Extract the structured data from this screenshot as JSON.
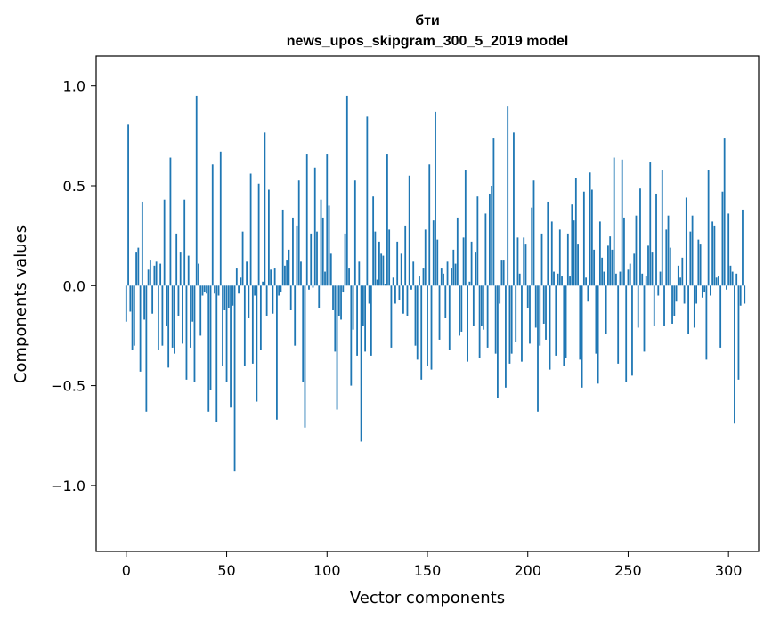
{
  "chart_data": {
    "type": "bar",
    "title": "бти",
    "subtitle": "news_upos_skipgram_300_5_2019 model",
    "xlabel": "Vector components",
    "ylabel": "Components values",
    "xlim": [
      -15,
      315
    ],
    "ylim": [
      -1.33,
      1.15
    ],
    "xticks": [
      0,
      50,
      100,
      150,
      200,
      250,
      300
    ],
    "xtick_labels": [
      "0",
      "50",
      "100",
      "150",
      "200",
      "250",
      "300"
    ],
    "yticks": [
      -1.0,
      -0.5,
      0.0,
      0.5,
      1.0
    ],
    "ytick_labels": [
      "−1.0",
      "−0.5",
      "0.0",
      "0.5",
      "1.0"
    ],
    "grid": false,
    "legend": "none",
    "bar_color": "#1f77b4",
    "values": [
      -0.18,
      0.81,
      -0.13,
      -0.32,
      -0.3,
      0.17,
      0.19,
      -0.43,
      0.42,
      -0.17,
      -0.63,
      0.08,
      0.13,
      -0.14,
      0.1,
      0.12,
      -0.32,
      0.11,
      -0.3,
      0.43,
      -0.2,
      -0.41,
      0.64,
      -0.31,
      -0.34,
      0.26,
      -0.15,
      0.17,
      -0.29,
      0.43,
      -0.47,
      0.15,
      -0.31,
      -0.18,
      -0.48,
      0.95,
      0.11,
      -0.25,
      -0.05,
      -0.03,
      -0.04,
      -0.63,
      -0.52,
      0.61,
      -0.04,
      -0.68,
      -0.05,
      0.67,
      -0.4,
      -0.12,
      -0.48,
      -0.11,
      -0.61,
      -0.1,
      -0.93,
      0.09,
      -0.04,
      0.04,
      0.27,
      -0.4,
      0.12,
      -0.16,
      0.56,
      -0.39,
      -0.05,
      -0.58,
      0.51,
      -0.32,
      0.02,
      0.77,
      -0.15,
      0.48,
      0.08,
      -0.14,
      0.09,
      -0.67,
      -0.05,
      -0.03,
      0.38,
      0.1,
      0.13,
      0.18,
      -0.12,
      0.34,
      -0.3,
      0.3,
      0.53,
      0.12,
      -0.48,
      -0.71,
      0.66,
      -0.02,
      0.26,
      -0.01,
      0.59,
      0.27,
      -0.11,
      0.43,
      0.34,
      0.07,
      0.66,
      0.4,
      0.16,
      -0.12,
      -0.33,
      -0.62,
      -0.15,
      -0.17,
      -0.03,
      0.26,
      0.95,
      0.09,
      -0.5,
      -0.22,
      0.53,
      -0.35,
      0.12,
      -0.78,
      -0.2,
      -0.33,
      0.85,
      -0.09,
      -0.35,
      0.45,
      0.27,
      0.03,
      0.22,
      0.16,
      0.15,
      0.01,
      0.66,
      0.28,
      -0.31,
      0.04,
      -0.09,
      0.22,
      -0.07,
      0.16,
      -0.14,
      0.3,
      -0.15,
      0.55,
      -0.02,
      0.12,
      -0.3,
      -0.37,
      0.05,
      -0.47,
      0.09,
      0.28,
      -0.4,
      0.61,
      -0.42,
      0.33,
      0.87,
      0.23,
      -0.27,
      0.09,
      0.06,
      -0.16,
      0.12,
      -0.32,
      0.09,
      0.18,
      0.11,
      0.34,
      -0.25,
      -0.23,
      0.24,
      0.58,
      -0.38,
      0.02,
      0.22,
      -0.2,
      0.17,
      0.45,
      -0.36,
      -0.2,
      -0.22,
      0.36,
      -0.31,
      0.46,
      0.5,
      0.74,
      -0.34,
      -0.56,
      -0.09,
      0.13,
      0.13,
      -0.51,
      0.9,
      -0.39,
      -0.34,
      0.77,
      -0.28,
      0.24,
      0.06,
      -0.38,
      0.24,
      0.21,
      -0.11,
      -0.29,
      0.39,
      0.53,
      -0.21,
      -0.63,
      -0.3,
      0.26,
      -0.19,
      -0.27,
      0.42,
      -0.42,
      0.32,
      0.07,
      -0.35,
      0.06,
      0.28,
      0.05,
      -0.4,
      -0.36,
      0.26,
      0.05,
      0.41,
      0.33,
      0.54,
      0.21,
      -0.37,
      -0.51,
      0.47,
      0.04,
      -0.08,
      0.57,
      0.48,
      0.18,
      -0.34,
      -0.49,
      0.32,
      0.14,
      0.07,
      -0.24,
      0.2,
      0.25,
      0.18,
      0.64,
      0.06,
      -0.39,
      0.07,
      0.63,
      0.34,
      -0.48,
      0.08,
      0.11,
      -0.45,
      0.16,
      0.35,
      -0.21,
      0.49,
      0.06,
      -0.33,
      0.05,
      0.2,
      0.62,
      0.17,
      -0.2,
      0.46,
      -0.05,
      0.07,
      0.58,
      -0.2,
      0.28,
      0.35,
      0.19,
      -0.19,
      -0.15,
      -0.08,
      0.1,
      0.04,
      0.14,
      -0.09,
      0.44,
      -0.24,
      0.27,
      0.35,
      -0.21,
      -0.09,
      0.23,
      0.21,
      -0.06,
      -0.03,
      -0.37,
      0.58,
      -0.05,
      0.32,
      0.3,
      0.04,
      0.05,
      -0.31,
      0.47,
      0.74,
      -0.02,
      0.36,
      0.1,
      0.07,
      -0.69,
      0.06,
      -0.47,
      -0.1,
      0.38,
      -0.09
    ]
  }
}
